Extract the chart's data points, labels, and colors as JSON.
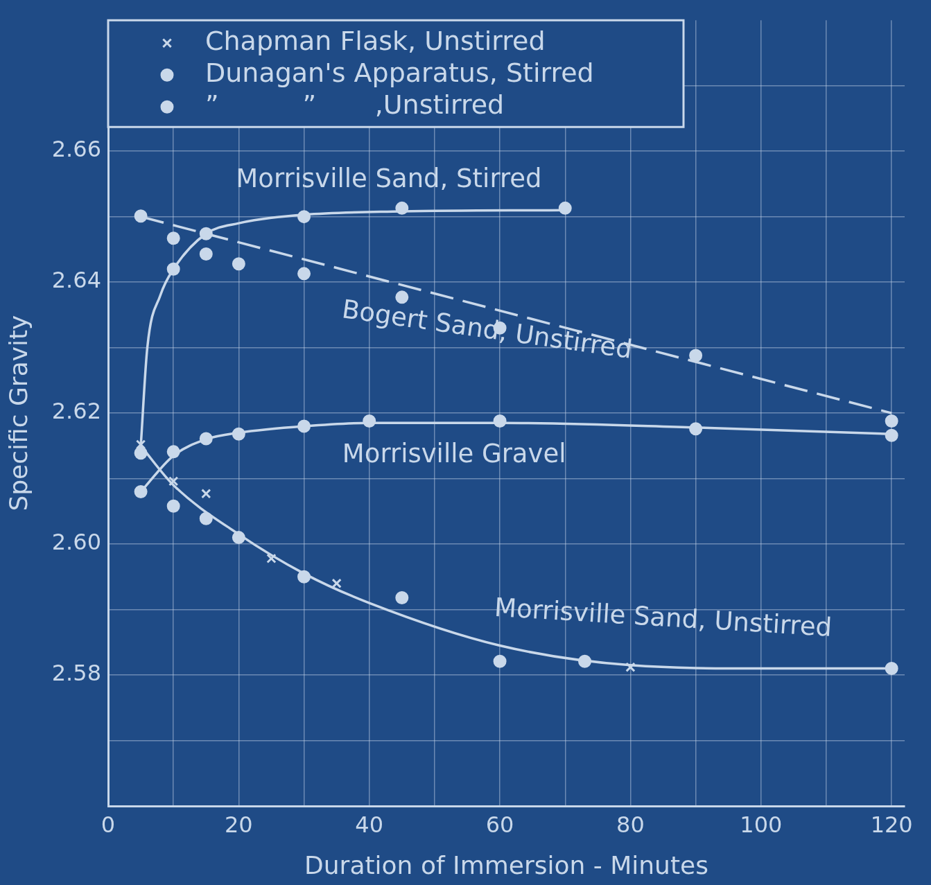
{
  "chart_data": {
    "type": "scatter",
    "xlabel": "Duration of Immersion - Minutes",
    "ylabel": "Specific Gravity",
    "xlim": [
      0,
      122
    ],
    "ylim": [
      2.56,
      2.68
    ],
    "xticks": [
      0,
      {
        "value": 10,
        "label": null
      },
      20,
      {
        "value": 30,
        "label": null
      },
      40,
      {
        "value": 50,
        "label": null
      },
      60,
      {
        "value": 70,
        "label": null
      },
      80,
      {
        "value": 90,
        "label": null
      },
      100,
      {
        "value": 110,
        "label": null
      },
      120
    ],
    "yticks": [
      {
        "value": 2.57,
        "label": null
      },
      {
        "value": 2.58,
        "label": "2.58"
      },
      {
        "value": 2.59,
        "label": null
      },
      {
        "value": 2.6,
        "label": "2.60"
      },
      {
        "value": 2.61,
        "label": null
      },
      {
        "value": 2.62,
        "label": "2.62"
      },
      {
        "value": 2.63,
        "label": null
      },
      {
        "value": 2.64,
        "label": "2.64"
      },
      {
        "value": 2.65,
        "label": null
      },
      {
        "value": 2.66,
        "label": "2.66"
      },
      {
        "value": 2.67,
        "label": null
      }
    ],
    "grid": true,
    "legend": "top left",
    "series": [
      {
        "name": "Chapman Flask, Unstirred",
        "type": "scatter",
        "marker": "cross",
        "color": "#c9d8ea",
        "x": [
          5,
          10,
          15,
          25,
          35,
          80
        ],
        "values": [
          2.6152,
          2.6096,
          2.6077,
          2.5978,
          2.594,
          2.5812
        ]
      },
      {
        "name": "Dunagan's Apparatus, Stirred",
        "type": "scatter",
        "marker": "circle",
        "color": "#c9d8ea",
        "x": [
          10,
          15,
          30,
          45,
          70,
          5,
          10,
          15,
          20,
          30,
          40,
          60,
          90,
          120
        ],
        "values": [
          2.642,
          2.6474,
          2.65,
          2.6513,
          2.6513,
          2.608,
          2.6141,
          2.6161,
          2.6168,
          2.618,
          2.6188,
          2.6188,
          2.6176,
          2.6166
        ]
      },
      {
        "name": "”          ”       ,Unstirred",
        "type": "scatter",
        "marker": "circle",
        "color": "#c9d8ea",
        "x": [
          5,
          10,
          15,
          20,
          30,
          45,
          60,
          90,
          120,
          5,
          10,
          15,
          20,
          30,
          45,
          60,
          73,
          120
        ],
        "values": [
          2.6501,
          2.6467,
          2.6443,
          2.6428,
          2.6413,
          2.6377,
          2.633,
          2.6288,
          2.6188,
          2.6139,
          2.6058,
          2.6039,
          2.601,
          2.595,
          2.5918,
          2.5821,
          2.5821,
          2.581
        ]
      },
      {
        "type": "line",
        "marker": "none",
        "line_style": "solid",
        "color": "#c9d8ea",
        "x": [
          5,
          6,
          8,
          10,
          15,
          20,
          30,
          45,
          70
        ],
        "values": [
          2.615,
          2.63,
          2.638,
          2.642,
          2.6474,
          2.649,
          2.6503,
          2.6508,
          2.651
        ]
      },
      {
        "type": "line",
        "marker": "none",
        "line_style": "dashed",
        "color": "#c9d8ea",
        "x": [
          5,
          120
        ],
        "values": [
          2.65,
          2.62
        ]
      },
      {
        "type": "line",
        "marker": "none",
        "line_style": "solid",
        "color": "#c9d8ea",
        "x": [
          5,
          10,
          15,
          20,
          30,
          40,
          60,
          90,
          120
        ],
        "values": [
          2.608,
          2.6135,
          2.616,
          2.617,
          2.618,
          2.6185,
          2.6185,
          2.6178,
          2.6168
        ]
      },
      {
        "type": "line",
        "marker": "none",
        "line_style": "solid",
        "color": "#c9d8ea",
        "x": [
          5,
          10,
          20,
          30,
          40,
          60,
          80,
          100,
          120
        ],
        "values": [
          2.615,
          2.609,
          2.6015,
          2.5955,
          2.591,
          2.5845,
          2.5815,
          2.581,
          2.581
        ]
      }
    ],
    "annotations": [
      "Morrisville Sand, Stirred",
      "Bogert Sand, Unstirred",
      "Morrisville Gravel",
      "Morrisville Sand, Unstirred"
    ]
  }
}
